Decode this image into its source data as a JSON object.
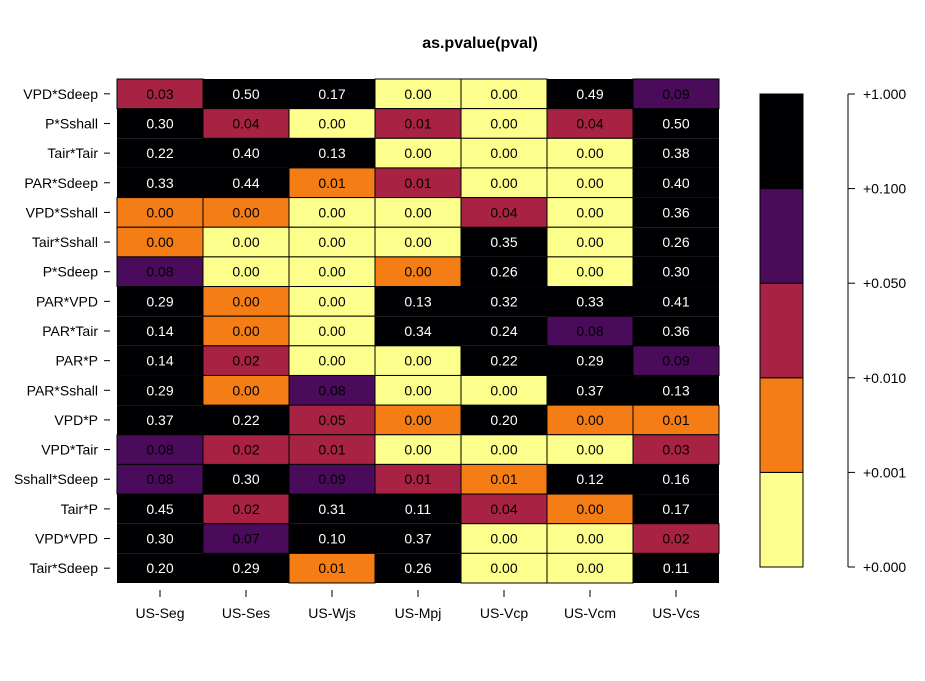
{
  "chart_data": {
    "type": "heatmap",
    "title": "as.pvalue(pval)",
    "columns": [
      "US-Seg",
      "US-Ses",
      "US-Wjs",
      "US-Mpj",
      "US-Vcp",
      "US-Vcm",
      "US-Vcs"
    ],
    "rows": [
      "VPD*Sdeep",
      "P*Sshall",
      "Tair*Tair",
      "PAR*Sdeep",
      "VPD*Sshall",
      "Tair*Sshall",
      "P*Sdeep",
      "PAR*VPD",
      "PAR*Tair",
      "PAR*P",
      "PAR*Sshall",
      "VPD*P",
      "VPD*Tair",
      "Sshall*Sdeep",
      "Tair*P",
      "VPD*VPD",
      "Tair*Sdeep"
    ],
    "values": [
      [
        0.03,
        0.5,
        0.17,
        0.0,
        0.0,
        0.49,
        0.09
      ],
      [
        0.3,
        0.04,
        0.0,
        0.01,
        0.0,
        0.04,
        0.5
      ],
      [
        0.22,
        0.4,
        0.13,
        0.0,
        0.0,
        0.0,
        0.38
      ],
      [
        0.33,
        0.44,
        0.01,
        0.01,
        0.0,
        0.0,
        0.4
      ],
      [
        0.0,
        0.0,
        0.0,
        0.0,
        0.04,
        0.0,
        0.36
      ],
      [
        0.0,
        0.0,
        0.0,
        0.0,
        0.35,
        0.0,
        0.26
      ],
      [
        0.08,
        0.0,
        0.0,
        0.0,
        0.26,
        0.0,
        0.3
      ],
      [
        0.29,
        0.0,
        0.0,
        0.13,
        0.32,
        0.33,
        0.41
      ],
      [
        0.14,
        0.0,
        0.0,
        0.34,
        0.24,
        0.08,
        0.36
      ],
      [
        0.14,
        0.02,
        0.0,
        0.0,
        0.22,
        0.29,
        0.09
      ],
      [
        0.29,
        0.0,
        0.08,
        0.0,
        0.0,
        0.37,
        0.13
      ],
      [
        0.37,
        0.22,
        0.05,
        0.0,
        0.2,
        0.0,
        0.01
      ],
      [
        0.08,
        0.02,
        0.01,
        0.0,
        0.0,
        0.0,
        0.03
      ],
      [
        0.08,
        0.3,
        0.09,
        0.01,
        0.01,
        0.12,
        0.16
      ],
      [
        0.45,
        0.02,
        0.31,
        0.11,
        0.04,
        0.0,
        0.17
      ],
      [
        0.3,
        0.07,
        0.1,
        0.37,
        0.0,
        0.0,
        0.02
      ],
      [
        0.2,
        0.29,
        0.01,
        0.26,
        0.0,
        0.0,
        0.11
      ]
    ],
    "categories_matrix": [
      [
        2,
        4,
        4,
        0,
        0,
        4,
        3
      ],
      [
        4,
        2,
        0,
        2,
        0,
        2,
        4
      ],
      [
        4,
        4,
        4,
        0,
        0,
        0,
        4
      ],
      [
        4,
        4,
        1,
        2,
        0,
        0,
        4
      ],
      [
        1,
        1,
        0,
        0,
        2,
        0,
        4
      ],
      [
        1,
        0,
        0,
        0,
        4,
        0,
        4
      ],
      [
        3,
        0,
        0,
        1,
        4,
        0,
        4
      ],
      [
        4,
        1,
        0,
        4,
        4,
        4,
        4
      ],
      [
        4,
        1,
        0,
        4,
        4,
        3,
        4
      ],
      [
        4,
        2,
        0,
        0,
        4,
        4,
        3
      ],
      [
        4,
        1,
        3,
        0,
        0,
        4,
        4
      ],
      [
        4,
        4,
        2,
        1,
        4,
        1,
        1
      ],
      [
        3,
        2,
        2,
        0,
        0,
        0,
        2
      ],
      [
        3,
        4,
        3,
        2,
        1,
        4,
        4
      ],
      [
        4,
        2,
        4,
        4,
        2,
        1,
        4
      ],
      [
        4,
        3,
        4,
        4,
        0,
        0,
        2
      ],
      [
        4,
        4,
        1,
        4,
        0,
        0,
        4
      ]
    ],
    "color_bins": [
      "#FCFF8C",
      "#F47D15",
      "#A82244",
      "#4A0B5A",
      "#000003"
    ],
    "text_colors": [
      "#000000",
      "#000000",
      "#000000",
      "#000000",
      "#ffffff"
    ],
    "legend_ticks": [
      "+0.000",
      "+0.001",
      "+0.010",
      "+0.050",
      "+0.100",
      "+1.000"
    ]
  }
}
